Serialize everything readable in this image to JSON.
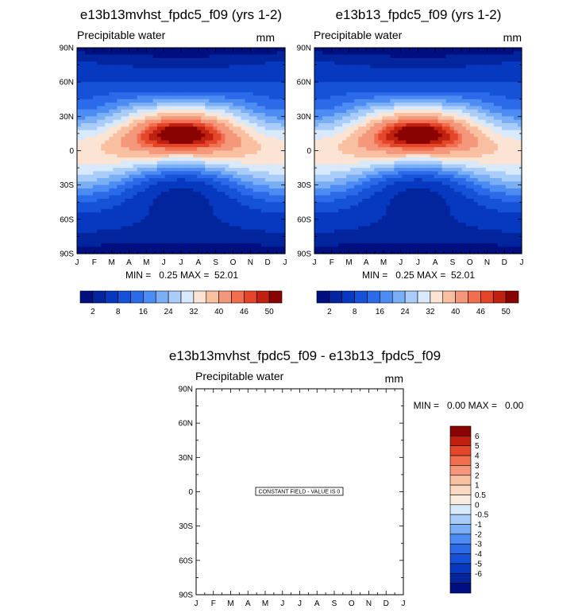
{
  "chart_data": [
    {
      "type": "heatmap",
      "title": "e13b13mvhst_fpdc5_f09 (yrs 1-2)",
      "left_label": "Precipitable water",
      "units": "mm",
      "x_tick_labels": [
        "J",
        "F",
        "M",
        "A",
        "M",
        "J",
        "J",
        "A",
        "S",
        "O",
        "N",
        "D",
        "J"
      ],
      "y_tick_labels": [
        "90N",
        "60N",
        "30N",
        "0",
        "30S",
        "60S",
        "90S"
      ],
      "y_range": [
        -90,
        90
      ],
      "min_max_text": "MIN =   0.25 MAX =  52.01",
      "min": 0.25,
      "max": 52.01,
      "colorbar_tick_labels": [
        "2",
        "8",
        "16",
        "24",
        "32",
        "40",
        "46",
        "50"
      ],
      "colorbar_levels": [
        2,
        4,
        8,
        12,
        16,
        20,
        24,
        28,
        32,
        36,
        40,
        44,
        46,
        48,
        50
      ]
    },
    {
      "type": "heatmap",
      "title": "e13b13_fpdc5_f09 (yrs 1-2)",
      "left_label": "Precipitable water",
      "units": "mm",
      "x_tick_labels": [
        "J",
        "F",
        "M",
        "A",
        "M",
        "J",
        "J",
        "A",
        "S",
        "O",
        "N",
        "D",
        "J"
      ],
      "y_tick_labels": [
        "90N",
        "60N",
        "30N",
        "0",
        "30S",
        "60S",
        "90S"
      ],
      "y_range": [
        -90,
        90
      ],
      "min_max_text": "MIN =   0.25 MAX =  52.01",
      "min": 0.25,
      "max": 52.01,
      "colorbar_tick_labels": [
        "2",
        "8",
        "16",
        "24",
        "32",
        "40",
        "46",
        "50"
      ],
      "colorbar_levels": [
        2,
        4,
        8,
        12,
        16,
        20,
        24,
        28,
        32,
        36,
        40,
        44,
        46,
        48,
        50
      ]
    },
    {
      "type": "heatmap",
      "title": "e13b13mvhst_fpdc5_f09 - e13b13_fpdc5_f09",
      "left_label": "Precipitable water",
      "units": "mm",
      "x_tick_labels": [
        "J",
        "F",
        "M",
        "A",
        "M",
        "J",
        "J",
        "A",
        "S",
        "O",
        "N",
        "D",
        "J"
      ],
      "y_tick_labels": [
        "90N",
        "60N",
        "30N",
        "0",
        "30S",
        "60S",
        "90S"
      ],
      "y_range": [
        -90,
        90
      ],
      "min_max_text": "MIN =   0.00 MAX =   0.00",
      "min": 0.0,
      "max": 0.0,
      "annotation": "CONSTANT FIELD - VALUE IS 0",
      "colorbar_tick_labels": [
        "6",
        "5",
        "4",
        "3",
        "2",
        "1",
        "0.5",
        "0",
        "-0.5",
        "-1",
        "-2",
        "-3",
        "-4",
        "-5",
        "-6"
      ]
    }
  ],
  "palette": {
    "main": [
      "#000f80",
      "#02249c",
      "#0638c0",
      "#1552d8",
      "#2b6ae8",
      "#4d8cf2",
      "#7aaef5",
      "#a9cdf8",
      "#d8e9fb",
      "#fbe4d3",
      "#f8c0a1",
      "#f5977a",
      "#f16e4f",
      "#e4462a",
      "#c0200f",
      "#8a0303"
    ],
    "diff": [
      "#8a0303",
      "#c0200f",
      "#e4462a",
      "#f16e4f",
      "#f5977a",
      "#f8c0a1",
      "#fbd8c2",
      "#fbece0",
      "#d8e9fb",
      "#a9cdf8",
      "#7aaef5",
      "#4d8cf2",
      "#2b6ae8",
      "#1552d8",
      "#0638c0",
      "#02249c",
      "#000f80"
    ]
  }
}
